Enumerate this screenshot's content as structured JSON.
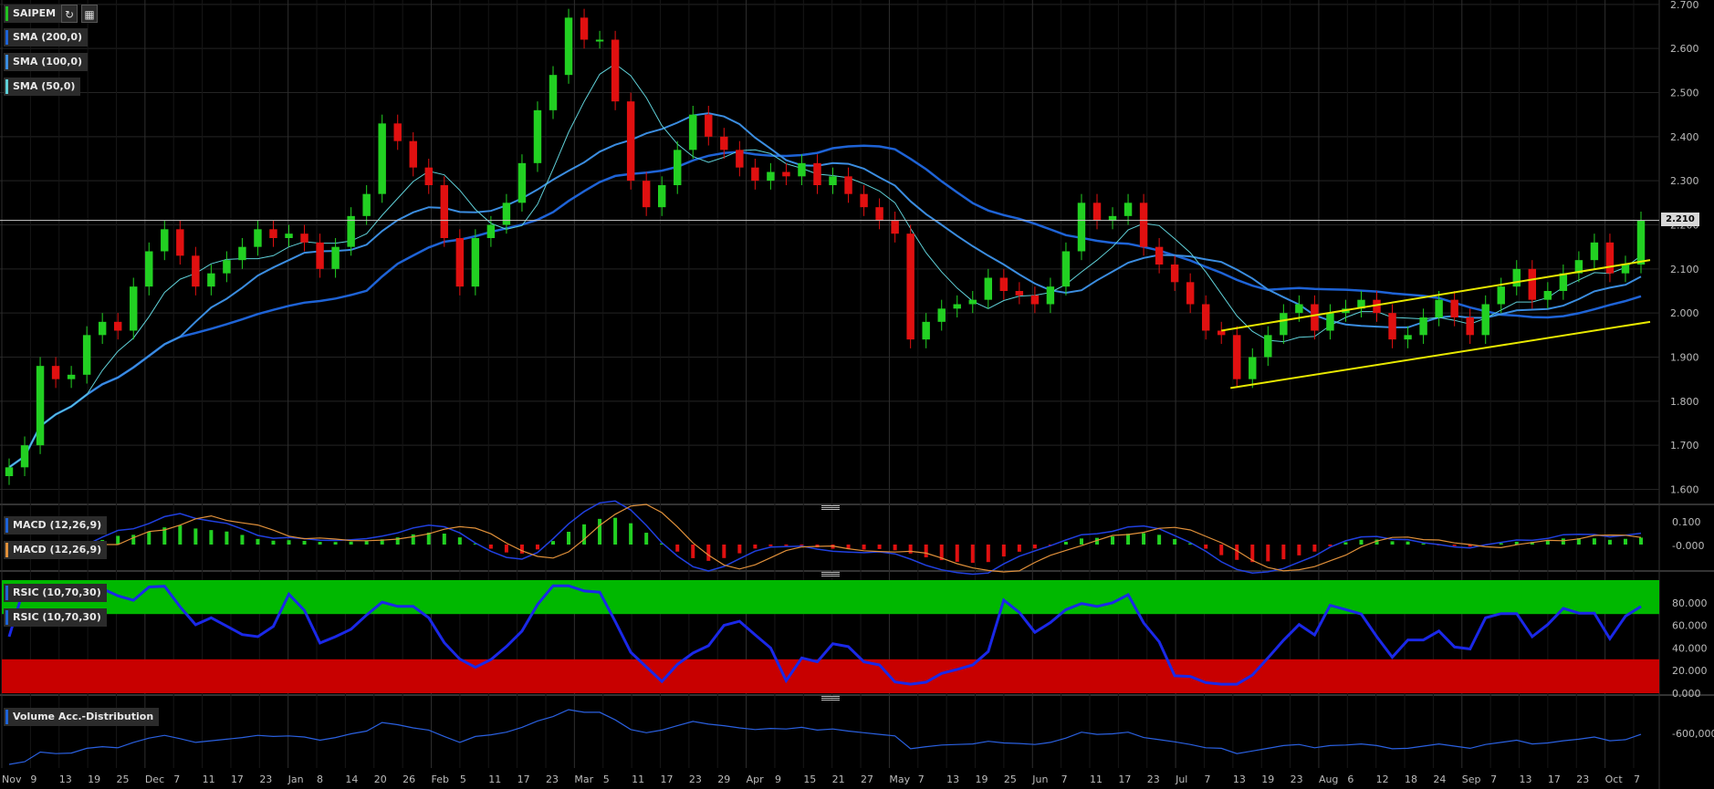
{
  "chart_data": {
    "type": "candlestick",
    "symbol": "SAIPEM",
    "last_price": "2.210",
    "x_ticks": [
      "Nov",
      "9",
      "13",
      "19",
      "25",
      "Dec",
      "7",
      "11",
      "17",
      "23",
      "Jan",
      "8",
      "14",
      "20",
      "26",
      "Feb",
      "5",
      "11",
      "17",
      "23",
      "Mar",
      "5",
      "11",
      "17",
      "23",
      "29",
      "Apr",
      "9",
      "15",
      "21",
      "27",
      "May",
      "7",
      "13",
      "19",
      "25",
      "Jun",
      "7",
      "11",
      "17",
      "23",
      "Jul",
      "7",
      "13",
      "19",
      "23",
      "Aug",
      "6",
      "12",
      "18",
      "24",
      "Sep",
      "7",
      "13",
      "17",
      "23",
      "Oct",
      "7"
    ],
    "price_axis": {
      "ticks": [
        "2.700",
        "2.600",
        "2.500",
        "2.400",
        "2.300",
        "2.200",
        "2.100",
        "2.000",
        "1.900",
        "1.800",
        "1.700",
        "1.600"
      ],
      "range": [
        1.57,
        2.71
      ]
    },
    "candles_approx": [
      1.65,
      1.7,
      1.88,
      1.85,
      1.86,
      1.95,
      1.98,
      1.96,
      2.06,
      2.14,
      2.19,
      2.13,
      2.06,
      2.09,
      2.12,
      2.15,
      2.19,
      2.17,
      2.18,
      2.16,
      2.1,
      2.15,
      2.22,
      2.27,
      2.43,
      2.39,
      2.33,
      2.29,
      2.17,
      2.06,
      2.17,
      2.2,
      2.25,
      2.34,
      2.46,
      2.54,
      2.67,
      2.62,
      2.62,
      2.48,
      2.3,
      2.24,
      2.29,
      2.37,
      2.45,
      2.4,
      2.37,
      2.33,
      2.3,
      2.32,
      2.31,
      2.34,
      2.29,
      2.31,
      2.27,
      2.24,
      2.21,
      2.18,
      1.94,
      1.98,
      2.01,
      2.02,
      2.03,
      2.08,
      2.05,
      2.04,
      2.02,
      2.06,
      2.14,
      2.25,
      2.21,
      2.22,
      2.25,
      2.15,
      2.11,
      2.07,
      2.02,
      1.96,
      1.95,
      1.85,
      1.9,
      1.95,
      2.0,
      2.02,
      1.96,
      2.0,
      2.01,
      2.03,
      2.0,
      1.94,
      1.95,
      1.99,
      2.03,
      1.99,
      1.95,
      2.02,
      2.06,
      2.1,
      2.03,
      2.05,
      2.09,
      2.12,
      2.16,
      2.09,
      2.11,
      2.21
    ],
    "sma": [
      {
        "name": "SMA (200,0)",
        "color": "#1e63d6"
      },
      {
        "name": "SMA (100,0)",
        "color": "#3b8de0"
      },
      {
        "name": "SMA (50,0)",
        "color": "#5fd0d8"
      }
    ],
    "trendlines": "yellow ascending channel from mid-July to October",
    "macd": {
      "label": "MACD (12,26,9)",
      "axis": [
        "0.100",
        "-0.000"
      ]
    },
    "rsi": {
      "label": "RSIC (10,70,30)",
      "axis": [
        "80.000",
        "60.000",
        "40.000",
        "20.000",
        "0.000"
      ],
      "overbought": 70,
      "oversold": 30
    },
    "volume": {
      "label": "Volume Acc.-Distribution",
      "axis": [
        "-600,000,"
      ]
    }
  }
}
